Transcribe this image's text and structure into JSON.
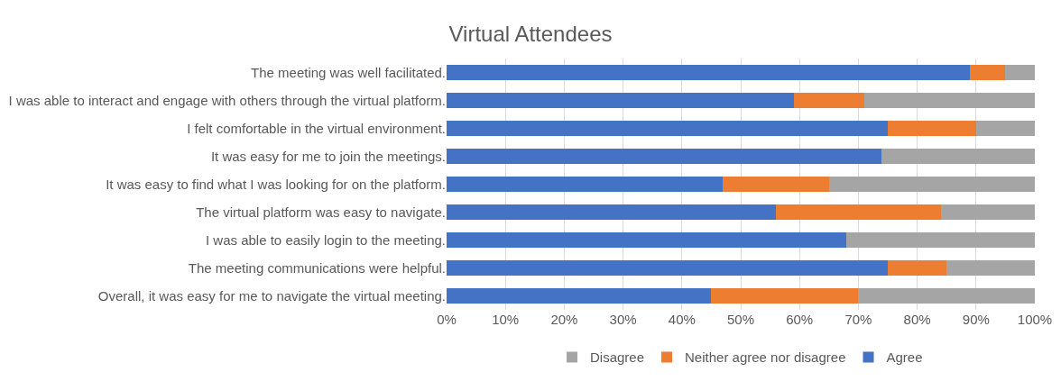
{
  "chart_data": {
    "type": "bar",
    "orientation": "horizontal",
    "stacked": true,
    "title": "Virtual Attendees",
    "categories": [
      "The meeting was well facilitated.",
      "I was able to interact and engage with others through the virtual platform.",
      "I felt comfortable in the virtual environment.",
      "It was easy for me to join the meetings.",
      "It was easy to find what I was looking for on the platform.",
      "The virtual platform was easy to navigate.",
      "I was able to easily login to the meeting.",
      "The meeting communications were helpful.",
      "Overall, it was easy for me to navigate the virtual meeting."
    ],
    "series": [
      {
        "name": "Agree",
        "color": "#4472c4",
        "values": [
          89,
          59,
          75,
          74,
          47,
          56,
          68,
          75,
          45
        ]
      },
      {
        "name": "Neither agree nor disagree",
        "color": "#ed7d31",
        "values": [
          6,
          12,
          15,
          0,
          18,
          28,
          0,
          10,
          25
        ]
      },
      {
        "name": "Disagree",
        "color": "#a5a5a5",
        "values": [
          5,
          29,
          10,
          26,
          35,
          16,
          32,
          15,
          30
        ]
      }
    ],
    "xlim": [
      0,
      100
    ],
    "xticks": [
      {
        "value": 0,
        "label": "0%"
      },
      {
        "value": 10,
        "label": "10%"
      },
      {
        "value": 20,
        "label": "20%"
      },
      {
        "value": 30,
        "label": "30%"
      },
      {
        "value": 40,
        "label": "40%"
      },
      {
        "value": 50,
        "label": "50%"
      },
      {
        "value": 60,
        "label": "60%"
      },
      {
        "value": 70,
        "label": "70%"
      },
      {
        "value": 80,
        "label": "80%"
      },
      {
        "value": 90,
        "label": "90%"
      },
      {
        "value": 100,
        "label": "100%"
      }
    ],
    "grid": "x",
    "legend": "bottom"
  }
}
